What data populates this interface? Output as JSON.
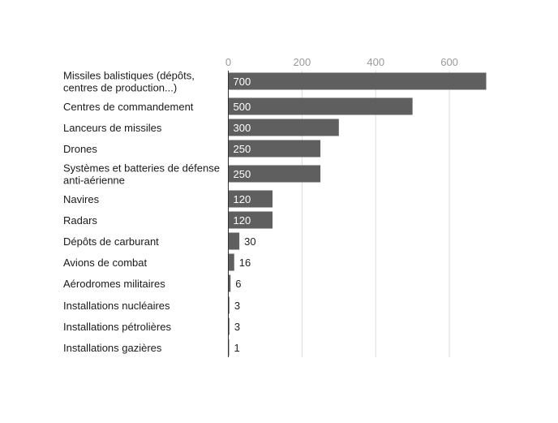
{
  "chart_data": {
    "type": "bar",
    "orientation": "horizontal",
    "title": "",
    "xlabel": "",
    "ylabel": "",
    "xlim": [
      0,
      700
    ],
    "x_ticks": [
      0,
      200,
      400,
      600
    ],
    "x_tick_labels": [
      "0",
      "200",
      "400",
      "600"
    ],
    "grid": true,
    "legend": "none",
    "categories": [
      "Missiles balistiques (dépôts,|centres de production...)",
      "Centres de commandement",
      "Lanceurs de missiles",
      "Drones",
      "Systèmes et batteries de défense|anti-aérienne",
      "Navires",
      "Radars",
      "Dépôts de carburant",
      "Avions de combat",
      "Aérodromes militaires",
      "Installations nucléaires",
      "Installations pétrolières",
      "Installations gazières"
    ],
    "values": [
      700,
      500,
      300,
      250,
      250,
      120,
      120,
      30,
      16,
      6,
      3,
      3,
      1
    ],
    "data_labels": [
      "700",
      "500",
      "300",
      "250",
      "250",
      "120",
      "120",
      "30",
      "16",
      "6",
      "3",
      "3",
      "1"
    ],
    "colors": {
      "bar": "#5f5f5f",
      "label_inside": "#ffffff",
      "label_outside": "#222222",
      "category_text": "#1a1a1a",
      "tick_text": "#9a9a9a",
      "grid": "#dcdcdc",
      "axis": "#333333"
    }
  }
}
